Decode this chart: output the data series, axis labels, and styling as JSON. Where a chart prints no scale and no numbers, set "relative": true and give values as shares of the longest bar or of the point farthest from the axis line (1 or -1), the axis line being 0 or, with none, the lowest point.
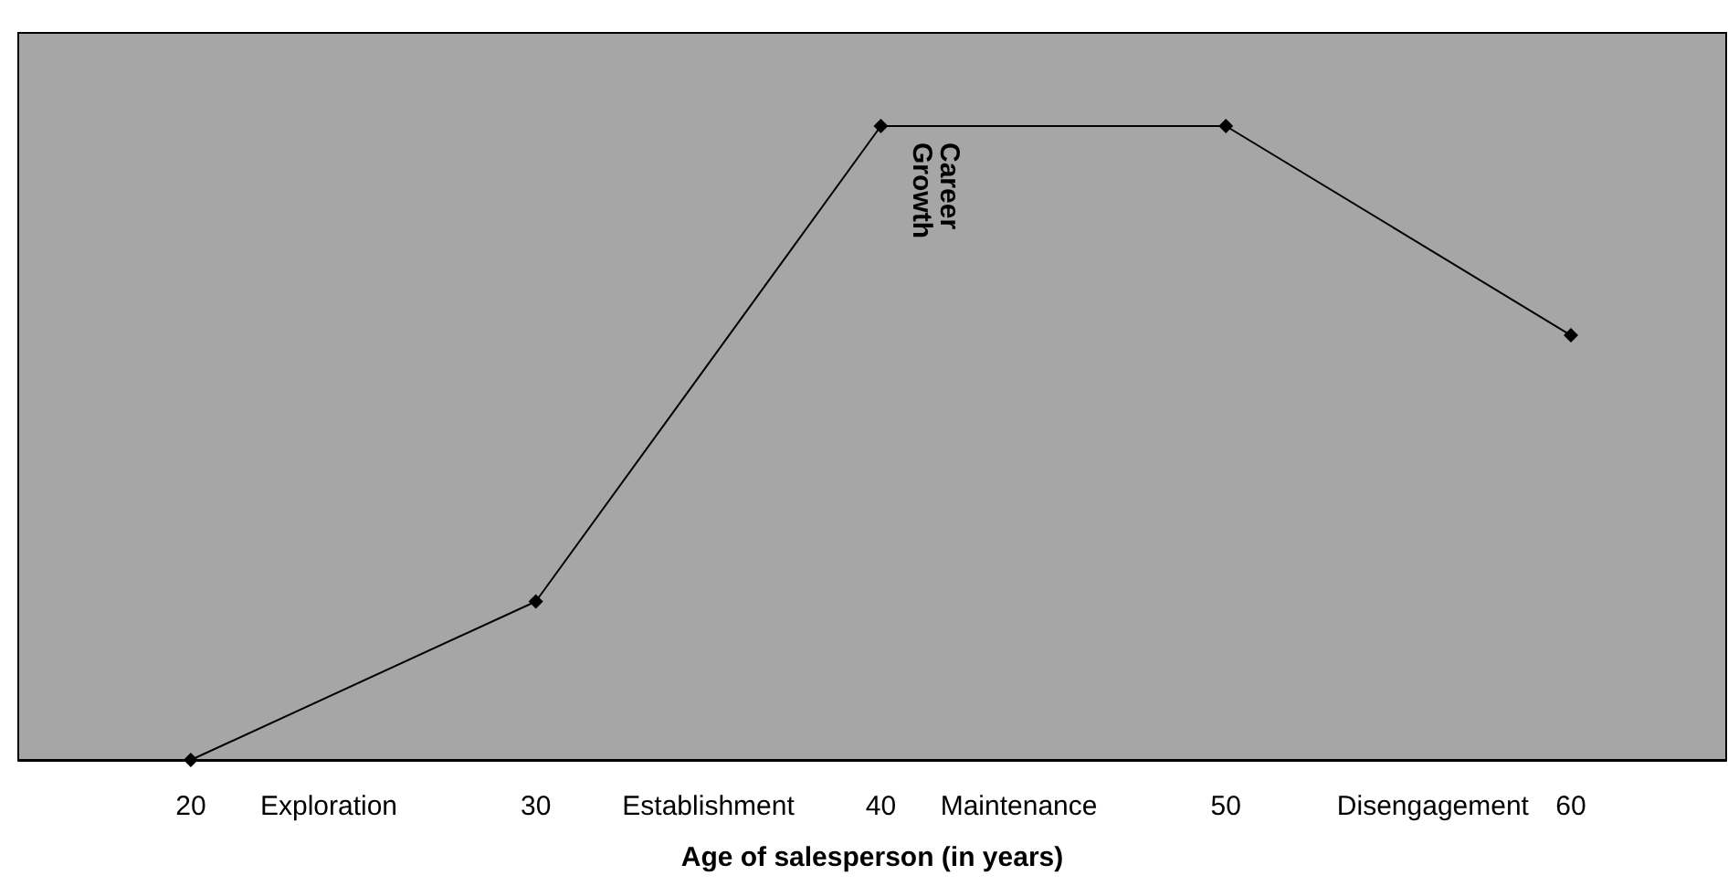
{
  "chart_data": {
    "type": "line",
    "relative": true,
    "xlabel": "Age of salesperson (in years)",
    "ylabel": "Career Growth",
    "x": [
      20,
      30,
      40,
      50,
      60
    ],
    "series": [
      {
        "color": "#000000",
        "values": [
          0,
          0.25,
          1,
          1,
          0.67
        ]
      }
    ],
    "xlim": [
      15,
      64.5
    ],
    "xticks": [
      20,
      {
        "value": 24,
        "label": "Exploration"
      },
      30,
      {
        "value": 35,
        "label": "Establishment"
      },
      40,
      {
        "value": 44,
        "label": "Maintenance"
      },
      50,
      {
        "value": 56,
        "label": "Disengagement"
      },
      60
    ],
    "marker": "diamond",
    "line_style": "solid",
    "grid": false
  }
}
